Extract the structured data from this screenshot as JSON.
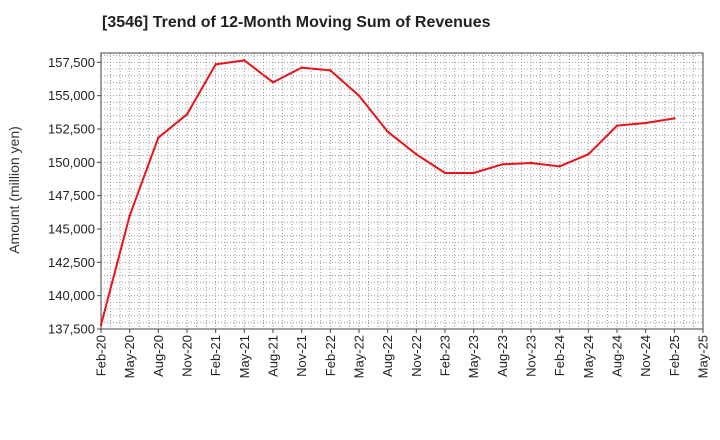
{
  "chart_data": {
    "type": "line",
    "title": "[3546]  Trend of 12-Month Moving Sum of Revenues",
    "xlabel": "",
    "ylabel": "Amount (million yen)",
    "categories": [
      "Feb-20",
      "May-20",
      "Aug-20",
      "Nov-20",
      "Feb-21",
      "May-21",
      "Aug-21",
      "Nov-21",
      "Feb-22",
      "May-22",
      "Aug-22",
      "Nov-22",
      "Feb-23",
      "May-23",
      "Aug-23",
      "Nov-23",
      "Feb-24",
      "May-24",
      "Aug-24",
      "Nov-24",
      "Feb-25"
    ],
    "x_tick_labels": [
      "Feb-20",
      "May-20",
      "Aug-20",
      "Nov-20",
      "Feb-21",
      "May-21",
      "Aug-21",
      "Nov-21",
      "Feb-22",
      "May-22",
      "Aug-22",
      "Nov-22",
      "Feb-23",
      "May-23",
      "Aug-23",
      "Nov-23",
      "Feb-24",
      "May-24",
      "Aug-24",
      "Nov-24",
      "Feb-25",
      "May-25"
    ],
    "y_ticks": [
      137500,
      140000,
      142500,
      145000,
      147500,
      150000,
      152500,
      155000,
      157500
    ],
    "y_tick_labels": [
      "137,500",
      "140,000",
      "142,500",
      "145,000",
      "147,500",
      "150,000",
      "152,500",
      "155,000",
      "157,500"
    ],
    "ylim": [
      137500,
      158200
    ],
    "grid": true,
    "series": [
      {
        "color": "#e8141b",
        "values": [
          137800,
          146000,
          151850,
          153600,
          157350,
          157650,
          156000,
          157100,
          156900,
          155000,
          152300,
          150600,
          149200,
          149200,
          149850,
          149950,
          149700,
          150600,
          152750,
          152950,
          153300
        ]
      }
    ]
  }
}
